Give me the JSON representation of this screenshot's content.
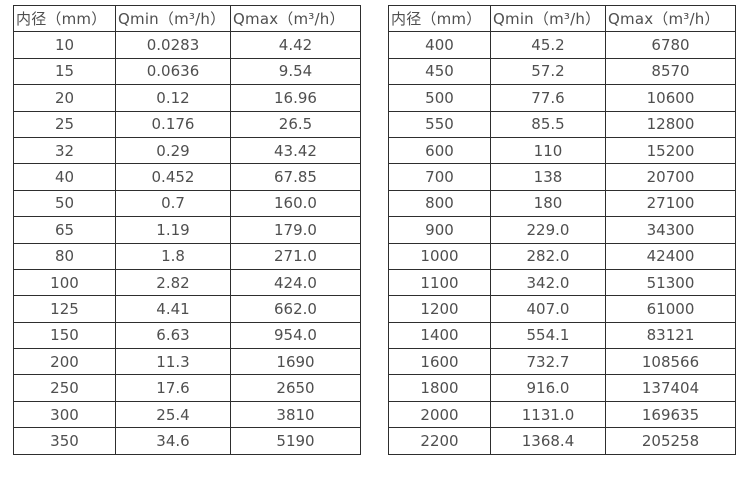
{
  "page": {
    "description": "Flow meter diameter vs minimum and maximum flow rate tables",
    "background_color": "#ffffff",
    "text_color": "#4f4f4f",
    "border_color": "#2e2e2e"
  },
  "tables": [
    {
      "name": "flow-table-small-diameters",
      "headers": [
        "内径（mm）",
        "Qmin（m³/h）",
        "Qmax（m³/h）"
      ],
      "rows": [
        [
          "10",
          "0.0283",
          "4.42"
        ],
        [
          "15",
          "0.0636",
          "9.54"
        ],
        [
          "20",
          "0.12",
          "16.96"
        ],
        [
          "25",
          "0.176",
          "26.5"
        ],
        [
          "32",
          "0.29",
          "43.42"
        ],
        [
          "40",
          "0.452",
          "67.85"
        ],
        [
          "50",
          "0.7",
          "160.0"
        ],
        [
          "65",
          "1.19",
          "179.0"
        ],
        [
          "80",
          "1.8",
          "271.0"
        ],
        [
          "100",
          "2.82",
          "424.0"
        ],
        [
          "125",
          "4.41",
          "662.0"
        ],
        [
          "150",
          "6.63",
          "954.0"
        ],
        [
          "200",
          "11.3",
          "1690"
        ],
        [
          "250",
          "17.6",
          "2650"
        ],
        [
          "300",
          "25.4",
          "3810"
        ],
        [
          "350",
          "34.6",
          "5190"
        ]
      ]
    },
    {
      "name": "flow-table-large-diameters",
      "headers": [
        "内径（mm）",
        "Qmin（m³/h）",
        "Qmax（m³/h）"
      ],
      "rows": [
        [
          "400",
          "45.2",
          "6780"
        ],
        [
          "450",
          "57.2",
          "8570"
        ],
        [
          "500",
          "77.6",
          "10600"
        ],
        [
          "550",
          "85.5",
          "12800"
        ],
        [
          "600",
          "110",
          "15200"
        ],
        [
          "700",
          "138",
          "20700"
        ],
        [
          "800",
          "180",
          "27100"
        ],
        [
          "900",
          "229.0",
          "34300"
        ],
        [
          "1000",
          "282.0",
          "42400"
        ],
        [
          "1100",
          "342.0",
          "51300"
        ],
        [
          "1200",
          "407.0",
          "61000"
        ],
        [
          "1400",
          "554.1",
          "83121"
        ],
        [
          "1600",
          "732.7",
          "108566"
        ],
        [
          "1800",
          "916.0",
          "137404"
        ],
        [
          "2000",
          "1131.0",
          "169635"
        ],
        [
          "2200",
          "1368.4",
          "205258"
        ]
      ]
    }
  ]
}
